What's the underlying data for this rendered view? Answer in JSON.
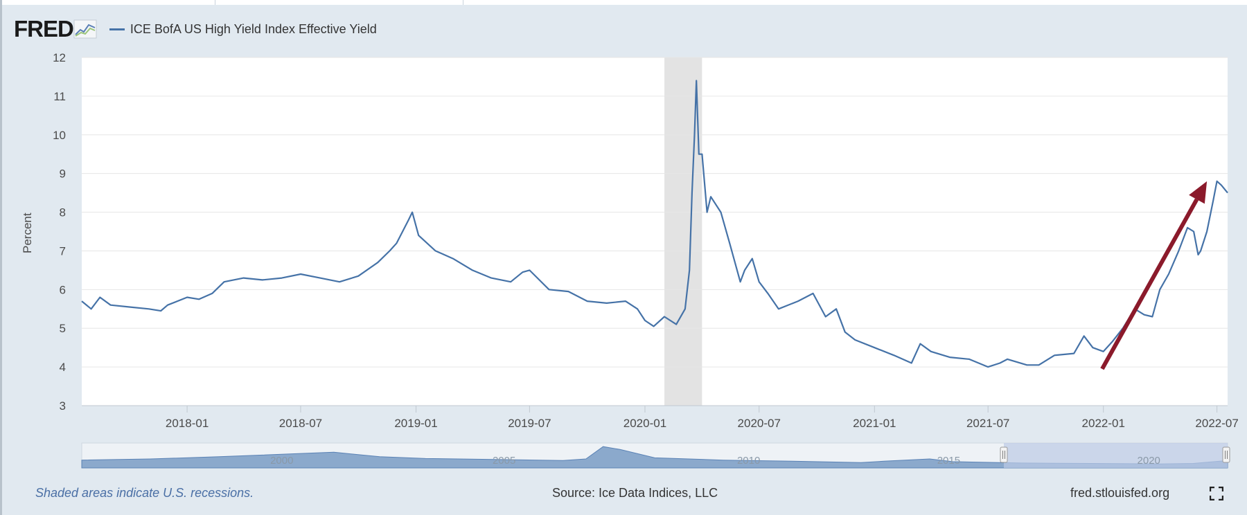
{
  "header": {
    "logo_text": "FRED",
    "legend_label": "ICE BofA US High Yield Index Effective Yield"
  },
  "footer": {
    "recession_note": "Shaded areas indicate U.S. recessions.",
    "source": "Source: Ice Data Indices, LLC",
    "site": "fred.stlouisfed.org"
  },
  "icons": {
    "logo_graph": "fred-chart-icon",
    "fullscreen": "fullscreen-icon"
  },
  "colors": {
    "series": "#4572a7",
    "recession": "#e3e3e3",
    "arrow": "#8b1a2b",
    "background": "#e1e9f0",
    "navigator_fill": "#8ba9cc",
    "navigator_window": "#bccbe5"
  },
  "chart_data": {
    "type": "line",
    "title": "",
    "xlabel": "",
    "ylabel": "Percent",
    "ylim": [
      3,
      12
    ],
    "yticks": [
      "3",
      "4",
      "5",
      "6",
      "7",
      "8",
      "9",
      "10",
      "11",
      "12"
    ],
    "xlim": [
      "2017-07-17",
      "2022-07-18"
    ],
    "xticks": [
      {
        "date": "2018-01-01",
        "label": "2018-01"
      },
      {
        "date": "2018-07-01",
        "label": "2018-07"
      },
      {
        "date": "2019-01-01",
        "label": "2019-01"
      },
      {
        "date": "2019-07-01",
        "label": "2019-07"
      },
      {
        "date": "2020-01-01",
        "label": "2020-01"
      },
      {
        "date": "2020-07-01",
        "label": "2020-07"
      },
      {
        "date": "2021-01-01",
        "label": "2021-01"
      },
      {
        "date": "2021-07-01",
        "label": "2021-07"
      },
      {
        "date": "2022-01-01",
        "label": "2022-01"
      },
      {
        "date": "2022-07-01",
        "label": "2022-07"
      }
    ],
    "grid": true,
    "legend_position": "top-left",
    "recessions": [
      {
        "start": "2020-02-01",
        "end": "2020-04-01"
      }
    ],
    "annotations": [
      {
        "type": "arrow",
        "from": {
          "x": "2021-12-30",
          "y": 3.95
        },
        "to": {
          "x": "2022-06-15",
          "y": 8.8
        }
      }
    ],
    "series": [
      {
        "name": "ICE BofA US High Yield Index Effective Yield",
        "x": [
          "2017-07-17",
          "2017-08-01",
          "2017-08-15",
          "2017-09-01",
          "2017-10-01",
          "2017-11-01",
          "2017-11-20",
          "2017-12-01",
          "2018-01-01",
          "2018-01-20",
          "2018-02-10",
          "2018-03-01",
          "2018-04-01",
          "2018-05-01",
          "2018-06-01",
          "2018-07-01",
          "2018-08-01",
          "2018-09-01",
          "2018-10-01",
          "2018-11-01",
          "2018-11-20",
          "2018-12-01",
          "2018-12-20",
          "2018-12-26",
          "2019-01-05",
          "2019-02-01",
          "2019-03-01",
          "2019-04-01",
          "2019-05-01",
          "2019-06-01",
          "2019-06-20",
          "2019-07-01",
          "2019-08-01",
          "2019-09-01",
          "2019-10-01",
          "2019-11-01",
          "2019-12-01",
          "2019-12-20",
          "2020-01-01",
          "2020-01-15",
          "2020-02-01",
          "2020-02-20",
          "2020-03-05",
          "2020-03-12",
          "2020-03-16",
          "2020-03-20",
          "2020-03-23",
          "2020-03-27",
          "2020-04-01",
          "2020-04-09",
          "2020-04-15",
          "2020-05-01",
          "2020-05-15",
          "2020-06-01",
          "2020-06-08",
          "2020-06-20",
          "2020-07-01",
          "2020-07-15",
          "2020-08-01",
          "2020-09-01",
          "2020-09-25",
          "2020-10-15",
          "2020-11-01",
          "2020-11-15",
          "2020-12-01",
          "2021-01-01",
          "2021-02-01",
          "2021-03-01",
          "2021-03-15",
          "2021-04-01",
          "2021-05-01",
          "2021-06-01",
          "2021-07-01",
          "2021-07-20",
          "2021-08-01",
          "2021-09-01",
          "2021-09-20",
          "2021-10-15",
          "2021-11-15",
          "2021-12-01",
          "2021-12-15",
          "2022-01-01",
          "2022-01-15",
          "2022-02-01",
          "2022-02-20",
          "2022-03-07",
          "2022-03-20",
          "2022-04-01",
          "2022-04-15",
          "2022-05-01",
          "2022-05-15",
          "2022-05-25",
          "2022-06-01",
          "2022-06-05",
          "2022-06-15",
          "2022-06-25",
          "2022-07-01",
          "2022-07-08",
          "2022-07-18"
        ],
        "values": [
          5.7,
          5.5,
          5.8,
          5.6,
          5.55,
          5.5,
          5.45,
          5.6,
          5.8,
          5.75,
          5.9,
          6.2,
          6.3,
          6.25,
          6.3,
          6.4,
          6.3,
          6.2,
          6.35,
          6.7,
          7.0,
          7.2,
          7.8,
          8.0,
          7.4,
          7.0,
          6.8,
          6.5,
          6.3,
          6.2,
          6.45,
          6.5,
          6.0,
          5.95,
          5.7,
          5.65,
          5.7,
          5.5,
          5.2,
          5.05,
          5.3,
          5.1,
          5.5,
          6.5,
          8.5,
          10.0,
          11.4,
          9.5,
          9.5,
          8.0,
          8.4,
          8.0,
          7.2,
          6.2,
          6.5,
          6.8,
          6.2,
          5.9,
          5.5,
          5.7,
          5.9,
          5.3,
          5.5,
          4.9,
          4.7,
          4.5,
          4.3,
          4.1,
          4.6,
          4.4,
          4.25,
          4.2,
          4.0,
          4.1,
          4.2,
          4.05,
          4.05,
          4.3,
          4.35,
          4.8,
          4.5,
          4.4,
          4.65,
          5.0,
          5.5,
          5.35,
          5.3,
          6.0,
          6.4,
          7.0,
          7.6,
          7.5,
          6.9,
          7.0,
          7.5,
          8.3,
          8.8,
          8.7,
          8.5
        ]
      }
    ],
    "navigator": {
      "tick_labels": [
        "2000",
        "2005",
        "2010",
        "2015",
        "2020"
      ]
    }
  }
}
